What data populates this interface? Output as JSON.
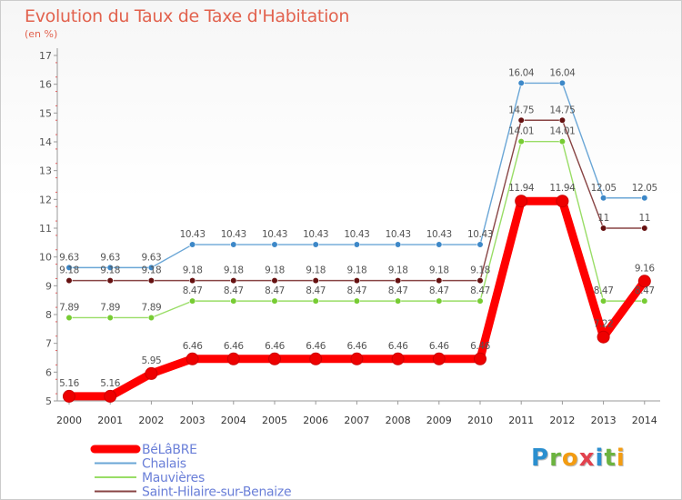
{
  "header": {
    "title": "Evolution du Taux de Taxe d'Habitation",
    "subtitle": "(en %)"
  },
  "logo": {
    "text": "Proxiti",
    "letters": [
      {
        "ch": "P",
        "color": "#2b8fcf"
      },
      {
        "ch": "r",
        "color": "#6cb33f"
      },
      {
        "ch": "o",
        "color": "#f39c12"
      },
      {
        "ch": "x",
        "color": "#e2424e"
      },
      {
        "ch": "i",
        "color": "#2b8fcf"
      },
      {
        "ch": "t",
        "color": "#6cb33f"
      },
      {
        "ch": "i",
        "color": "#f39c12"
      }
    ]
  },
  "chart_data": {
    "type": "line",
    "title": "Evolution du Taux de Taxe d'Habitation",
    "ylabel": "(en %)",
    "xlabel": "",
    "ylim": [
      5,
      17
    ],
    "yticks": [
      5,
      6,
      7,
      8,
      9,
      10,
      11,
      12,
      13,
      14,
      15,
      16,
      17
    ],
    "grid": false,
    "legend": "bottom-left",
    "x": [
      "2000",
      "2001",
      "2002",
      "2003",
      "2004",
      "2005",
      "2006",
      "2007",
      "2008",
      "2009",
      "2010",
      "2011",
      "2012",
      "2013",
      "2014"
    ],
    "series": [
      {
        "name": "BéLâBRE",
        "color": "#ff0000",
        "marker": "#ee0000",
        "values": [
          5.16,
          5.16,
          5.95,
          6.46,
          6.46,
          6.46,
          6.46,
          6.46,
          6.46,
          6.46,
          6.46,
          11.94,
          11.94,
          7.22,
          9.16
        ],
        "labels": [
          "5.16",
          "5.16",
          "5.95",
          "6.46",
          "6.46",
          "6.46",
          "6.46",
          "6.46",
          "6.46",
          "6.46",
          "6.46",
          "11.94",
          "11.94",
          "7.22",
          "9.16"
        ]
      },
      {
        "name": "Chalais",
        "color": "#6aa6d6",
        "marker": "#3d88c8",
        "values": [
          9.63,
          9.63,
          9.63,
          10.43,
          10.43,
          10.43,
          10.43,
          10.43,
          10.43,
          10.43,
          10.43,
          16.04,
          16.04,
          12.05,
          12.05
        ],
        "labels": [
          "9.63",
          "9.63",
          "9.63",
          "10.43",
          "10.43",
          "10.43",
          "10.43",
          "10.43",
          "10.43",
          "10.43",
          "10.43",
          "16.04",
          "16.04",
          "12.05",
          "12.05"
        ]
      },
      {
        "name": "Mauvières",
        "color": "#99dd66",
        "marker": "#77cc33",
        "values": [
          7.89,
          7.89,
          7.89,
          8.47,
          8.47,
          8.47,
          8.47,
          8.47,
          8.47,
          8.47,
          8.47,
          14.01,
          14.01,
          8.47,
          8.47
        ],
        "labels": [
          "7.89",
          "7.89",
          "7.89",
          "8.47",
          "8.47",
          "8.47",
          "8.47",
          "8.47",
          "8.47",
          "8.47",
          "8.47",
          "14.01",
          "14.01",
          "8.47",
          "8.47"
        ]
      },
      {
        "name": "Saint-Hilaire-sur-Benaize",
        "color": "#884444",
        "marker": "#661111",
        "values": [
          9.18,
          9.18,
          9.18,
          9.18,
          9.18,
          9.18,
          9.18,
          9.18,
          9.18,
          9.18,
          9.18,
          14.75,
          14.75,
          11,
          11
        ],
        "labels": [
          "9.18",
          "9.18",
          "9.18",
          "9.18",
          "9.18",
          "9.18",
          "9.18",
          "9.18",
          "9.18",
          "9.18",
          "9.18",
          "14.75",
          "14.75",
          "11",
          "11"
        ]
      }
    ]
  }
}
